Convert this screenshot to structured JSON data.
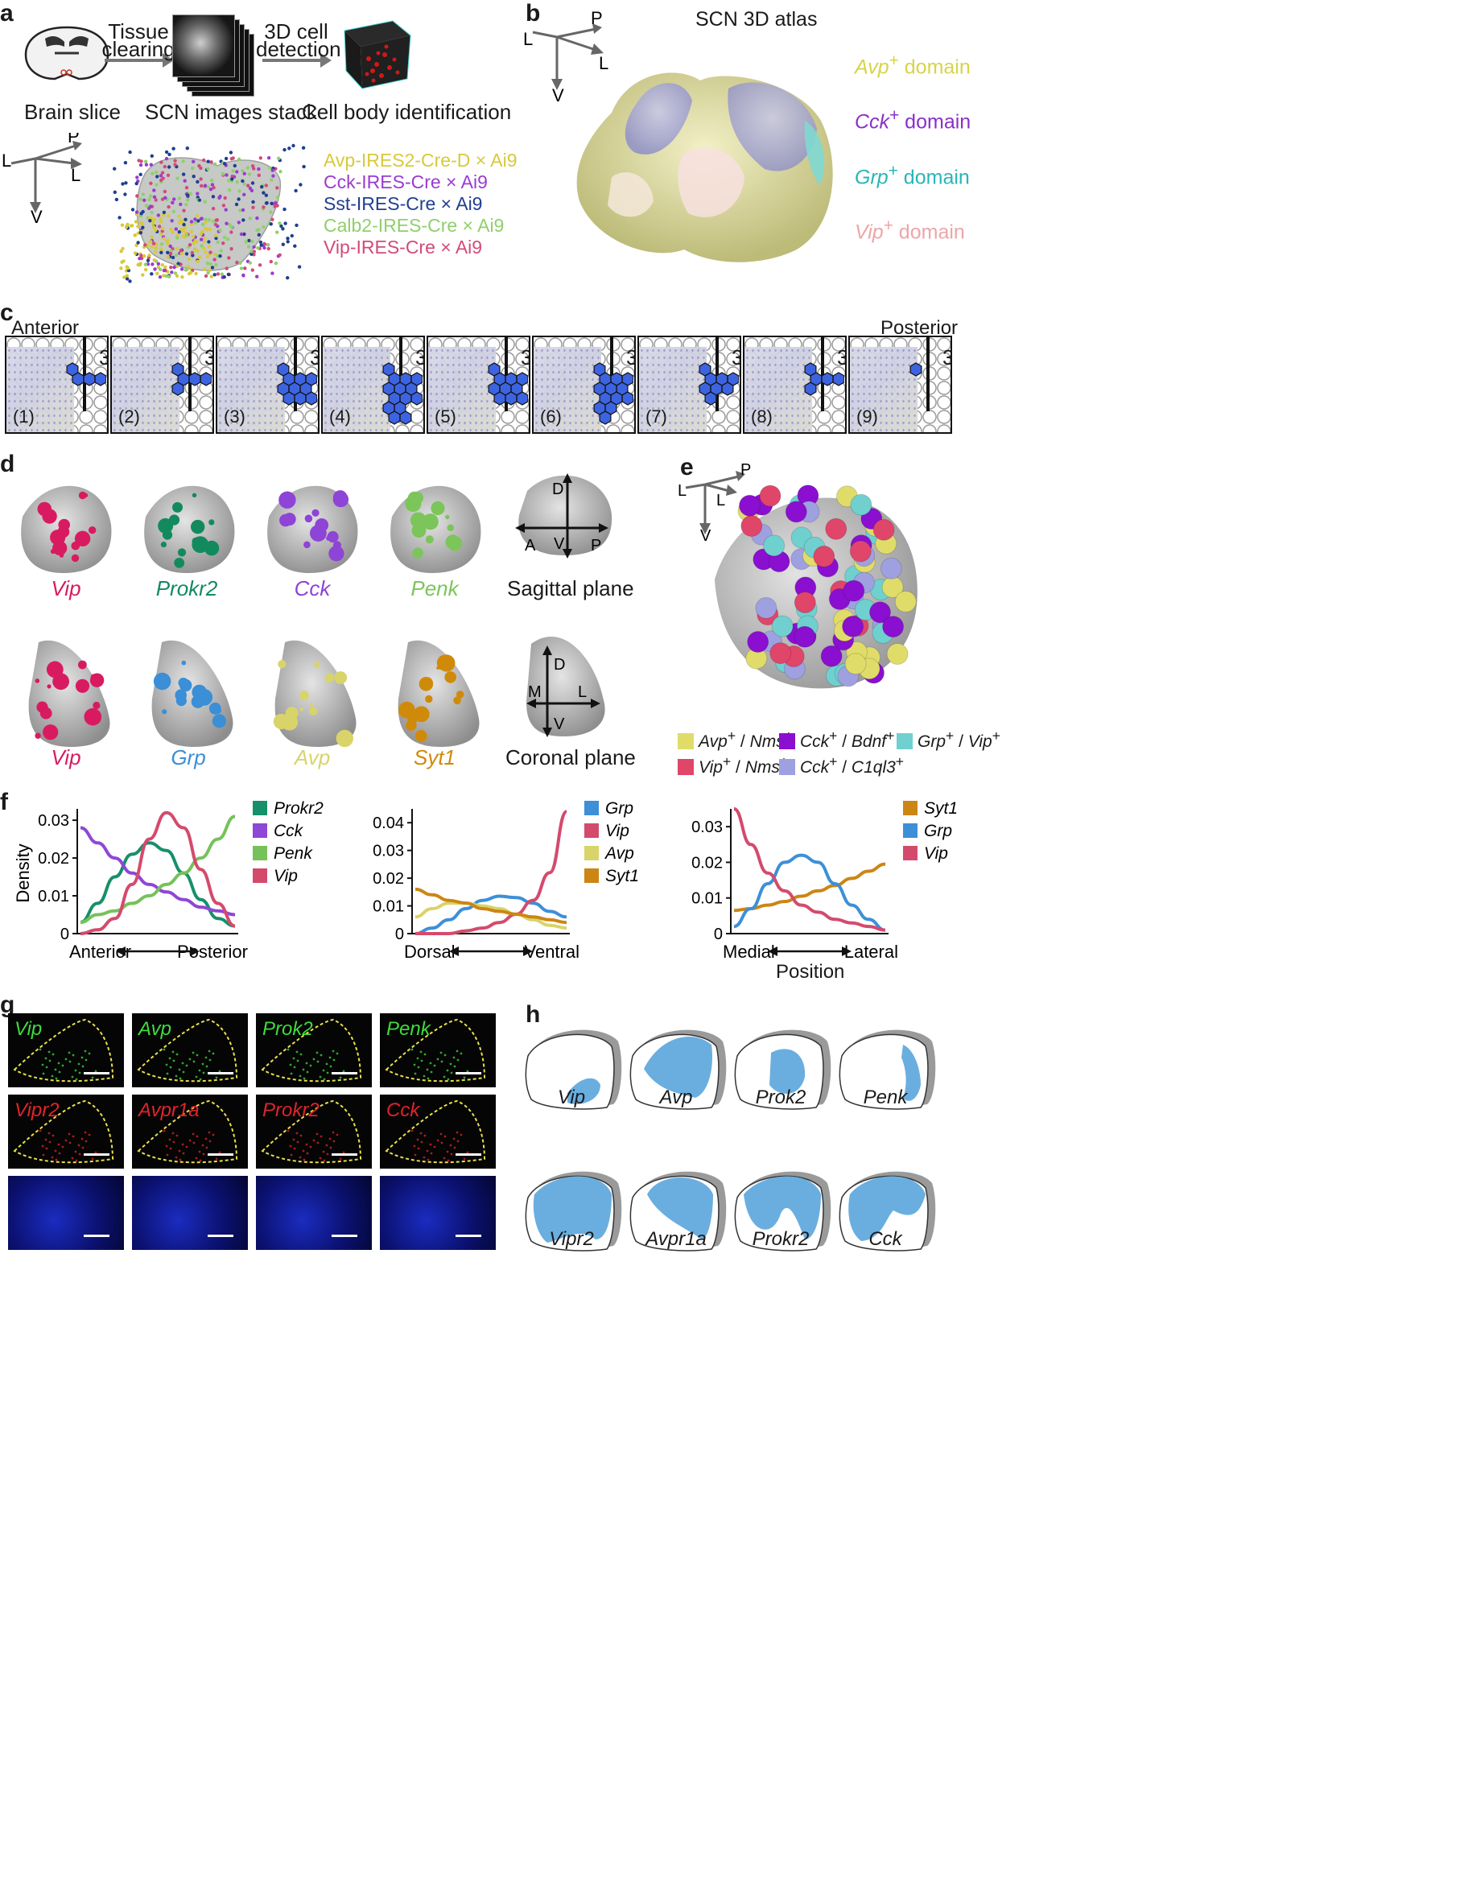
{
  "panel_a": {
    "label": "a",
    "step1": "Brain slice",
    "arrow1": [
      "Tissue",
      "clearing"
    ],
    "step2": "SCN images stack",
    "arrow2": [
      "3D cell",
      "detection"
    ],
    "step3": "Cell body identification",
    "axes": {
      "p": "P",
      "l1": "L",
      "l2": "L",
      "v": "V"
    },
    "legend": [
      {
        "text": "Avp-IRES2-Cre-D × Ai9",
        "color": "#d8c93a"
      },
      {
        "text": "Cck-IRES-Cre × Ai9",
        "color": "#9b3bd1"
      },
      {
        "text": "Sst-IRES-Cre × Ai9",
        "color": "#1f3f8f"
      },
      {
        "text": "Calb2-IRES-Cre × Ai9",
        "color": "#8fd06b"
      },
      {
        "text": "Vip-IRES-Cre × Ai9",
        "color": "#d24a7a"
      }
    ]
  },
  "panel_b": {
    "label": "b",
    "title": "SCN 3D atlas",
    "axes": {
      "p": "P",
      "l1": "L",
      "l2": "L",
      "v": "V"
    },
    "domains": [
      {
        "gene": "Avp",
        "text": " domain",
        "color": "#d9d34a"
      },
      {
        "gene": "Cck",
        "text": " domain",
        "color": "#8a2fc9"
      },
      {
        "gene": "Grp",
        "text": " domain",
        "color": "#2bb5b6"
      },
      {
        "gene": "Vip",
        "text": " domain",
        "color": "#eea5a8"
      }
    ]
  },
  "panel_c": {
    "label": "c",
    "anterior": "Anterior",
    "posterior": "Posterior",
    "ventricle": "3V",
    "sections": [
      "(1)",
      "(2)",
      "(3)",
      "(4)",
      "(5)",
      "(6)",
      "(7)",
      "(8)",
      "(9)"
    ],
    "hex_fill": "#3d64e0"
  },
  "panel_d": {
    "label": "d",
    "sagittal": [
      {
        "gene": "Vip",
        "color": "#d81b60"
      },
      {
        "gene": "Prokr2",
        "color": "#138a5e"
      },
      {
        "gene": "Cck",
        "color": "#8e44d6"
      },
      {
        "gene": "Penk",
        "color": "#7cc55a"
      }
    ],
    "coronal": [
      {
        "gene": "Vip",
        "color": "#d81b60"
      },
      {
        "gene": "Grp",
        "color": "#3a8fd6"
      },
      {
        "gene": "Avp",
        "color": "#d8d46a"
      },
      {
        "gene": "Syt1",
        "color": "#d08a0a"
      }
    ],
    "sag_axes": {
      "d": "D",
      "a": "A",
      "v": "V",
      "p": "P",
      "caption": "Sagittal plane"
    },
    "cor_axes": {
      "d": "D",
      "m": "M",
      "l": "L",
      "v": "V",
      "caption": "Coronal plane"
    }
  },
  "panel_e": {
    "label": "e",
    "axes": {
      "p": "P",
      "l1": "L",
      "l2": "L",
      "v": "V"
    },
    "legend": [
      {
        "g1": "Avp",
        "g2": "Nms",
        "color": "#e0dc6a"
      },
      {
        "g1": "Cck",
        "g2": "Bdnf",
        "color": "#8a0fd0"
      },
      {
        "g1": "Grp",
        "g2": "Vip",
        "color": "#6fd0cf"
      },
      {
        "g1": "Vip",
        "g2": "Nms",
        "color": "#e0456a"
      },
      {
        "g1": "Cck",
        "g2": "C1ql3",
        "color": "#9ea0e0"
      }
    ]
  },
  "panel_f": {
    "label": "f",
    "ylabel": "Density",
    "xlabel3": "Position",
    "charts": [
      {
        "xleft": "Anterior",
        "xright": "Posterior",
        "ylim": [
          0,
          0.033
        ],
        "yticks": [
          "0",
          "0.01",
          "0.02",
          "0.03"
        ],
        "series": [
          {
            "name": "Prokr2",
            "color": "#16906a",
            "values": [
              0.003,
              0.008,
              0.015,
              0.021,
              0.024,
              0.022,
              0.016,
              0.009,
              0.004,
              0.002
            ]
          },
          {
            "name": "Cck",
            "color": "#8e47d6",
            "values": [
              0.028,
              0.024,
              0.02,
              0.016,
              0.013,
              0.011,
              0.009,
              0.007,
              0.006,
              0.005
            ]
          },
          {
            "name": "Penk",
            "color": "#75c25a",
            "values": [
              0.003,
              0.005,
              0.006,
              0.008,
              0.01,
              0.013,
              0.016,
              0.02,
              0.025,
              0.031
            ]
          },
          {
            "name": "Vip",
            "color": "#d44a6d",
            "values": [
              0.0,
              0.001,
              0.004,
              0.013,
              0.025,
              0.032,
              0.028,
              0.017,
              0.008,
              0.002
            ]
          }
        ]
      },
      {
        "xleft": "Dorsal",
        "xright": "Ventral",
        "ylim": [
          0,
          0.045
        ],
        "yticks": [
          "0",
          "0.01",
          "0.02",
          "0.03",
          "0.04"
        ],
        "series": [
          {
            "name": "Grp",
            "color": "#3d8fd8",
            "values": [
              0.0,
              0.002,
              0.005,
              0.009,
              0.012,
              0.0135,
              0.013,
              0.011,
              0.008,
              0.006
            ]
          },
          {
            "name": "Vip",
            "color": "#d44a6d",
            "values": [
              0.0,
              0.0,
              0.0,
              0.001,
              0.002,
              0.004,
              0.007,
              0.012,
              0.022,
              0.044
            ]
          },
          {
            "name": "Avp",
            "color": "#d8d46a",
            "values": [
              0.006,
              0.009,
              0.011,
              0.011,
              0.01,
              0.009,
              0.007,
              0.005,
              0.003,
              0.002
            ]
          },
          {
            "name": "Syt1",
            "color": "#cc8614",
            "values": [
              0.016,
              0.014,
              0.012,
              0.011,
              0.009,
              0.008,
              0.007,
              0.006,
              0.005,
              0.004
            ]
          }
        ]
      },
      {
        "xleft": "Medial",
        "xright": "Lateral",
        "ylim": [
          0,
          0.035
        ],
        "yticks": [
          "0",
          "0.01",
          "0.02",
          "0.03"
        ],
        "series": [
          {
            "name": "Syt1",
            "color": "#cc8614",
            "values": [
              0.0065,
              0.007,
              0.008,
              0.009,
              0.0105,
              0.012,
              0.0135,
              0.0155,
              0.0175,
              0.0195
            ]
          },
          {
            "name": "Grp",
            "color": "#3d8fd8",
            "values": [
              0.002,
              0.007,
              0.014,
              0.02,
              0.022,
              0.02,
              0.014,
              0.008,
              0.004,
              0.001
            ]
          },
          {
            "name": "Vip",
            "color": "#d44a6d",
            "values": [
              0.035,
              0.025,
              0.017,
              0.012,
              0.008,
              0.006,
              0.004,
              0.003,
              0.002,
              0.001
            ]
          }
        ]
      }
    ]
  },
  "panel_g": {
    "label": "g",
    "row1": [
      "Vip",
      "Avp",
      "Prok2",
      "Penk"
    ],
    "row2": [
      "Vipr2",
      "Avpr1a",
      "Prokr2",
      "Cck"
    ],
    "green": "#3ddc3d",
    "red": "#e0242a",
    "outline": "#e8e04a"
  },
  "panel_h": {
    "label": "h",
    "row1": [
      "Vip",
      "Avp",
      "Prok2",
      "Penk"
    ],
    "row2": [
      "Vipr2",
      "Avpr1a",
      "Prokr2",
      "Cck"
    ],
    "fill": "#6aaee0"
  }
}
